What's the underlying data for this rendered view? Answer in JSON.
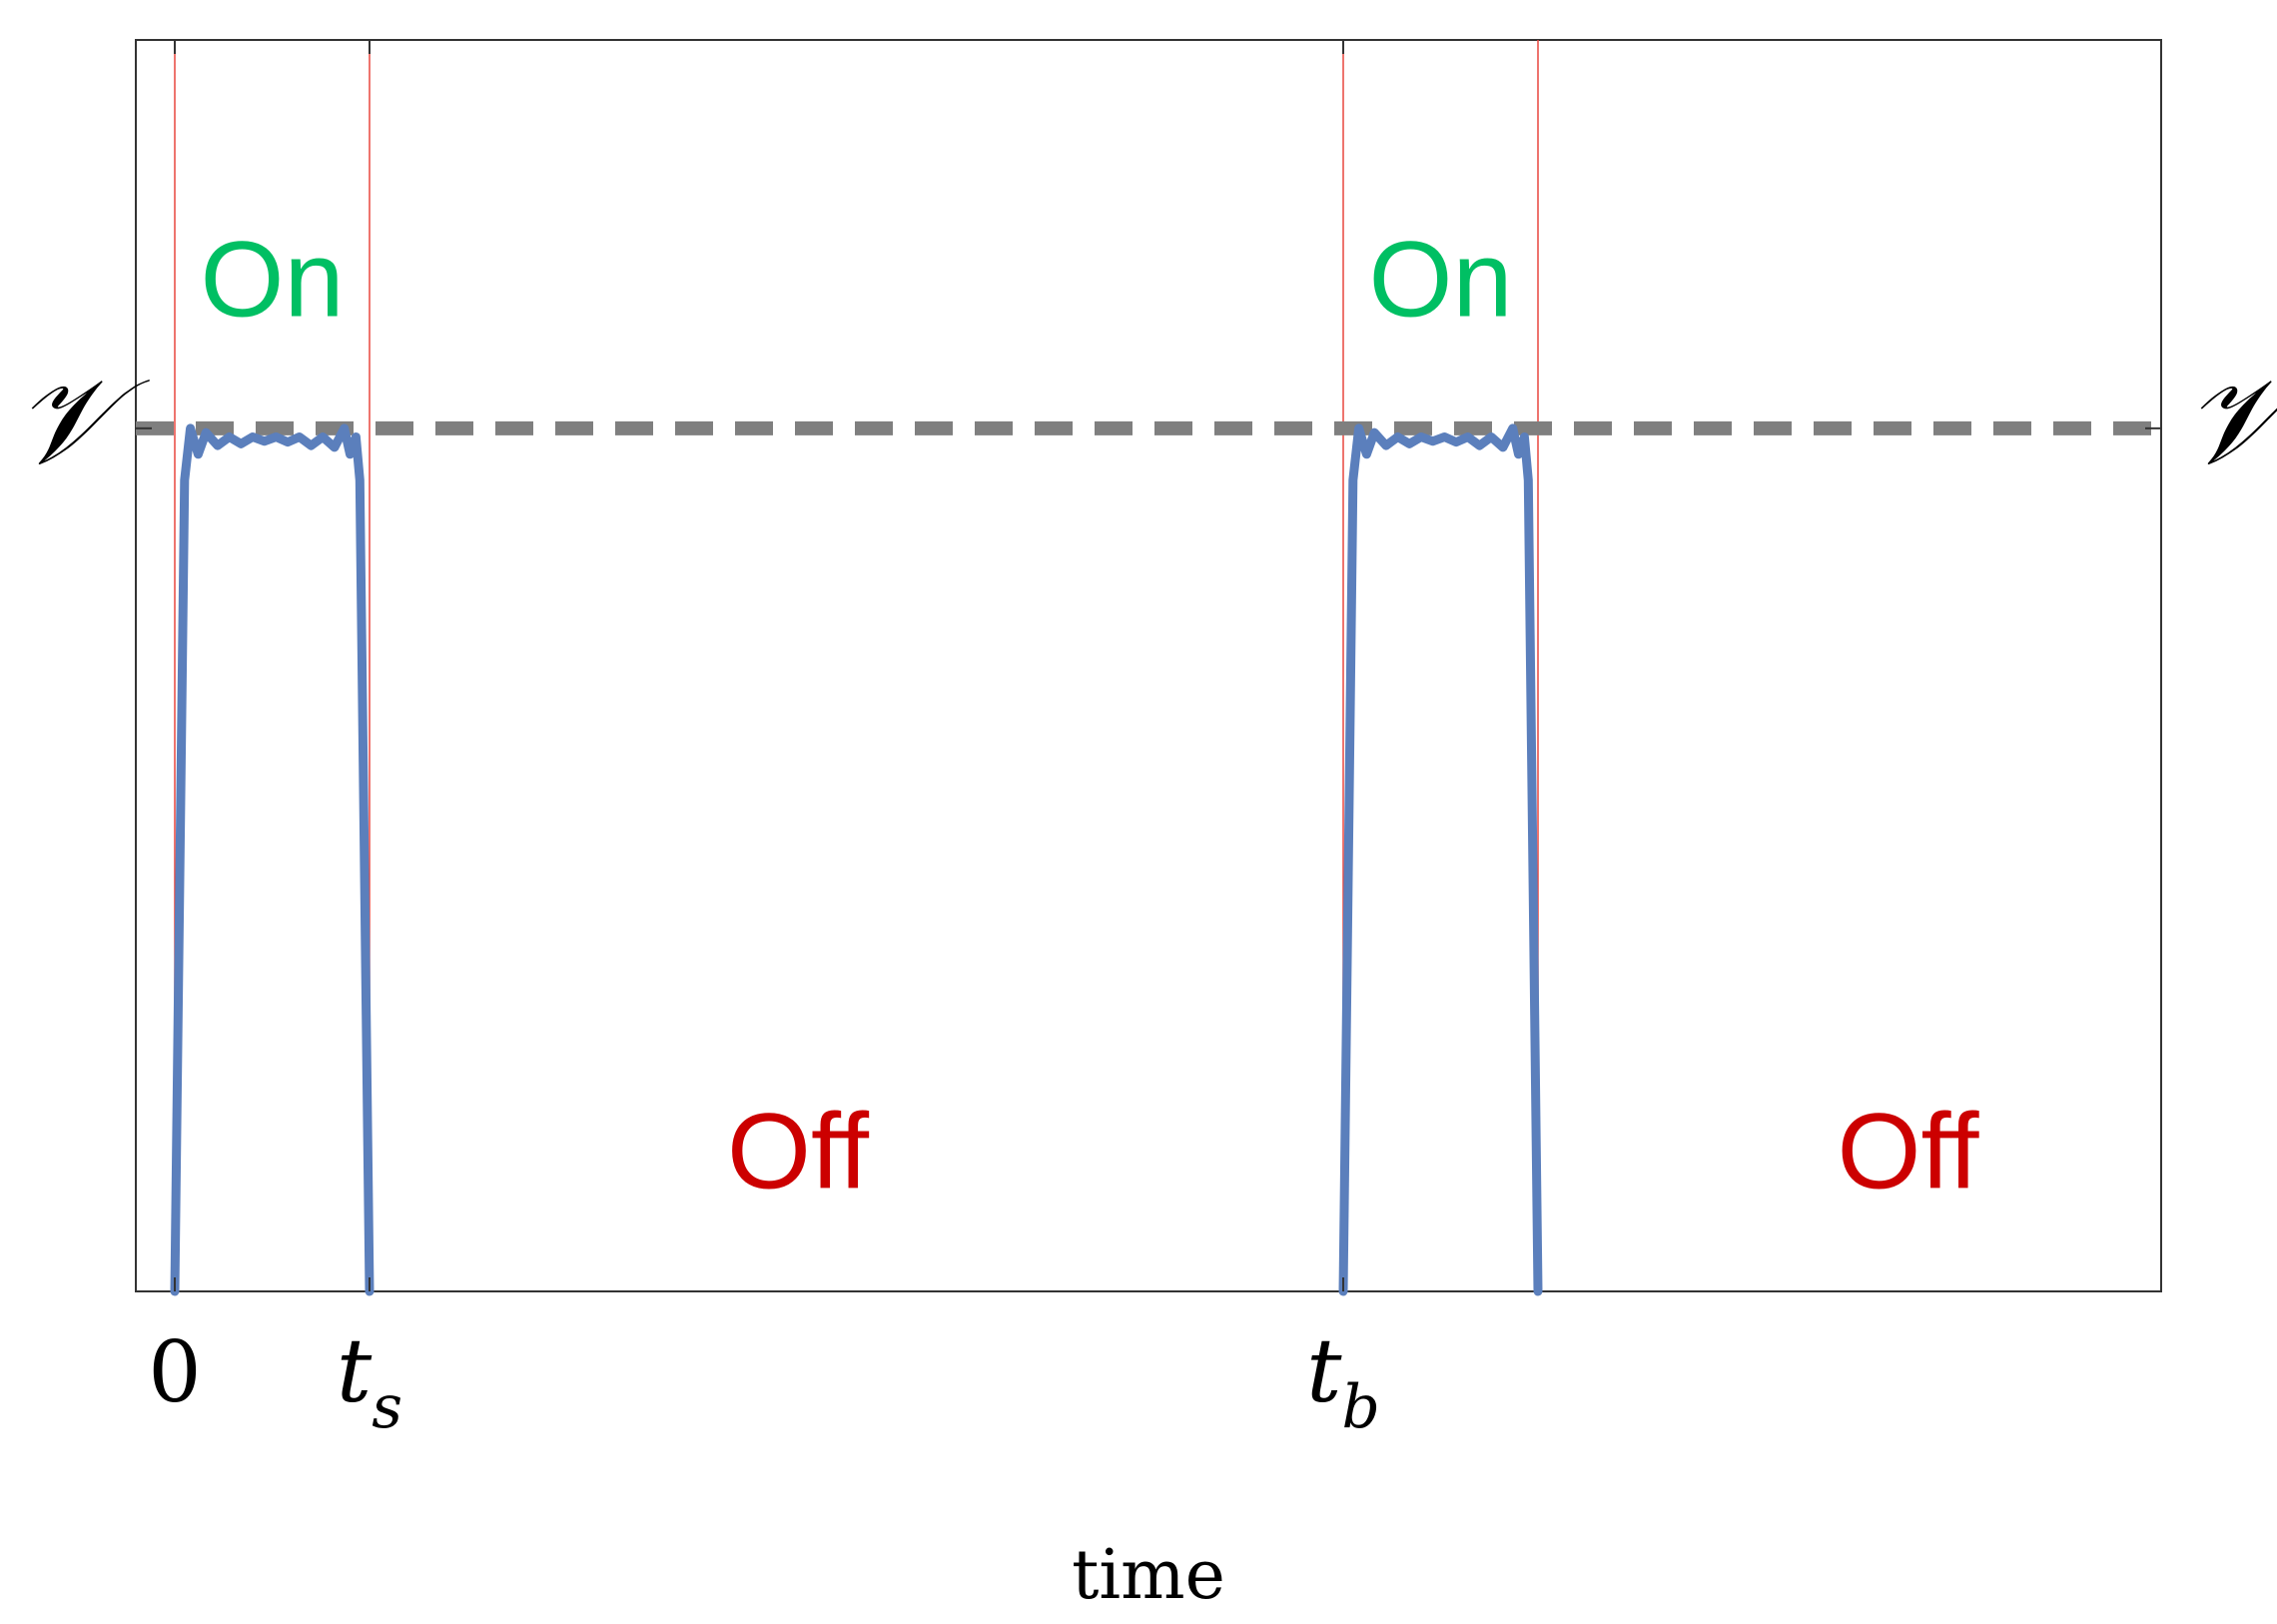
{
  "chart_data": {
    "type": "line",
    "title": "",
    "xlabel": "time",
    "ylabel": "",
    "xlim": [
      -0.2,
      10.2
    ],
    "ylim": [
      0,
      1.45
    ],
    "grid": false,
    "legend": "none",
    "colors": {
      "signal": "#5b7fbc",
      "reference": "#7f7f7f",
      "switch_lines": "#e8473f",
      "on_label": "#00bf63",
      "off_label": "#cc0000",
      "frame": "#333333"
    },
    "x_ticks": [
      {
        "value": 0,
        "label": "0",
        "kind": "plain"
      },
      {
        "value": 1,
        "label": "t",
        "sub": "s",
        "kind": "math"
      },
      {
        "value": 6,
        "label": "t",
        "sub": "b",
        "kind": "math"
      }
    ],
    "y_ticks": [
      {
        "value": 1,
        "label": "𝒱"
      }
    ],
    "reference_line": {
      "y": 1,
      "style": "dashed",
      "label_left": "𝒱",
      "label_right": "𝒱"
    },
    "switch_times": [
      0,
      1,
      6,
      7
    ],
    "series": [
      {
        "x": [
          0,
          0.05,
          0.08,
          0.12,
          0.16,
          0.22,
          0.28,
          0.34,
          0.4,
          0.46,
          0.52,
          0.58,
          0.64,
          0.7,
          0.76,
          0.82,
          0.87,
          0.9,
          0.93,
          0.95,
          1.0,
          6.0,
          6.05,
          6.08,
          6.12,
          6.16,
          6.22,
          6.28,
          6.34,
          6.4,
          6.46,
          6.52,
          6.58,
          6.64,
          6.7,
          6.76,
          6.82,
          6.87,
          6.9,
          6.93,
          6.95,
          7.0
        ],
        "y": [
          0,
          0.94,
          1.0,
          0.97,
          0.995,
          0.98,
          0.99,
          0.982,
          0.99,
          0.985,
          0.99,
          0.984,
          0.99,
          0.98,
          0.99,
          0.978,
          1.0,
          0.97,
          0.99,
          0.94,
          0,
          0,
          0.94,
          1.0,
          0.97,
          0.995,
          0.98,
          0.99,
          0.982,
          0.99,
          0.985,
          0.99,
          0.984,
          0.99,
          0.98,
          0.99,
          0.978,
          1.0,
          0.97,
          0.99,
          0.94,
          0
        ]
      }
    ],
    "annotations": [
      {
        "text": "On",
        "x": 0.5,
        "y": 1.13,
        "color_key": "on_label"
      },
      {
        "text": "On",
        "x": 6.5,
        "y": 1.13,
        "color_key": "on_label"
      },
      {
        "text": "Off",
        "x": 3.2,
        "y": 0.12,
        "color_key": "off_label"
      },
      {
        "text": "Off",
        "x": 8.9,
        "y": 0.12,
        "color_key": "off_label"
      }
    ]
  }
}
